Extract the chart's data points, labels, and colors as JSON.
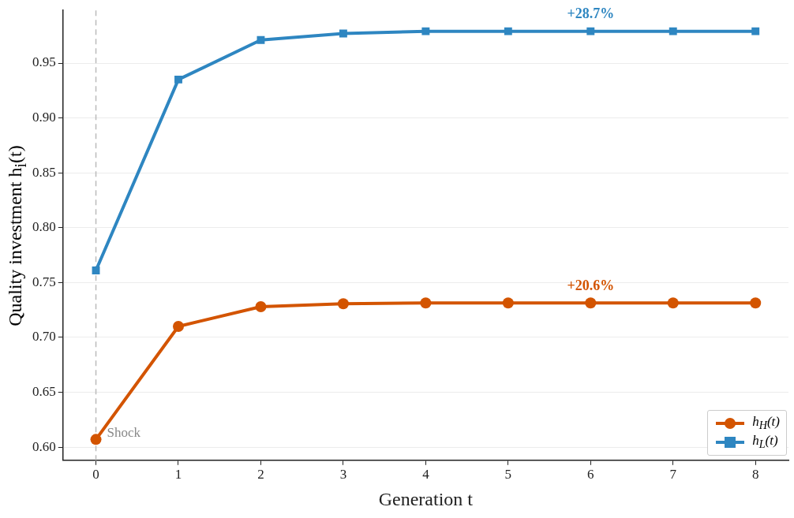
{
  "chart_data": {
    "type": "line",
    "xlabel": "Generation t",
    "ylabel": "Quality investment h$_{i}$(t)",
    "x": [
      0,
      1,
      2,
      3,
      4,
      5,
      6,
      7,
      8
    ],
    "series": [
      {
        "name": "h$_{H}$(t)",
        "color": "#d35400",
        "marker": "circle",
        "values": [
          0.607,
          0.71,
          0.728,
          0.7307,
          0.7314,
          0.7314,
          0.7314,
          0.7314,
          0.7314
        ]
      },
      {
        "name": "h$_{L}$(t)",
        "color": "#2e86c1",
        "marker": "square",
        "values": [
          0.761,
          0.935,
          0.971,
          0.977,
          0.979,
          0.979,
          0.979,
          0.979,
          0.979
        ]
      }
    ],
    "xlim": [
      -0.4,
      8.4
    ],
    "xticks": [
      0,
      1,
      2,
      3,
      4,
      5,
      6,
      7,
      8
    ],
    "ylim": [
      0.588,
      0.998
    ],
    "yticks": [
      {
        "value": 0.6,
        "label": "0.60"
      },
      {
        "value": 0.65,
        "label": "0.65"
      },
      {
        "value": 0.7,
        "label": "0.70"
      },
      {
        "value": 0.75,
        "label": "0.75"
      },
      {
        "value": 0.8,
        "label": "0.80"
      },
      {
        "value": 0.85,
        "label": "0.85"
      },
      {
        "value": 0.9,
        "label": "0.90"
      },
      {
        "value": 0.95,
        "label": "0.95"
      }
    ],
    "ref_lines": [
      {
        "axis": "x",
        "value": 0,
        "label": "Shock",
        "color": "#bbbbbb",
        "line_style": "dashed"
      }
    ],
    "annotations": [
      {
        "text": "+28.7%",
        "x": 6,
        "y": 0.979
      },
      {
        "text": "+20.6%",
        "x": 6,
        "y": 0.7314
      }
    ],
    "grid": "y",
    "legend": "bottom right",
    "line_style": "solid"
  }
}
